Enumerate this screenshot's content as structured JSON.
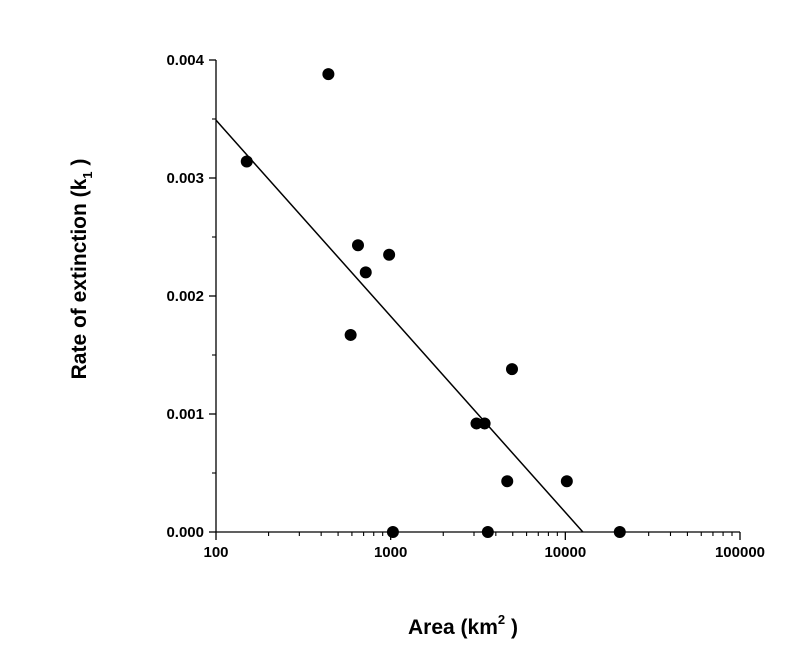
{
  "chart_data": {
    "type": "scatter",
    "x_scale": "log",
    "xlim": [
      100,
      100000
    ],
    "ylim": [
      0.0,
      0.004
    ],
    "x_ticks": [
      {
        "value": 100,
        "label": "100"
      },
      {
        "value": 1000,
        "label": "1000"
      },
      {
        "value": 10000,
        "label": "10000"
      },
      {
        "value": 100000,
        "label": "100000"
      }
    ],
    "y_ticks": [
      {
        "value": 0.0,
        "label": "0.000"
      },
      {
        "value": 0.001,
        "label": "0.001"
      },
      {
        "value": 0.002,
        "label": "0.002"
      },
      {
        "value": 0.003,
        "label": "0.003"
      },
      {
        "value": 0.004,
        "label": "0.004"
      }
    ],
    "xlabel": {
      "main": "Area  (km",
      "sup": "2",
      "end": " )"
    },
    "ylabel": {
      "main": "Rate  of  extinction  (k",
      "sub": "1",
      "end": " )"
    },
    "grid": false,
    "series": [
      {
        "points": [
          {
            "x": 150,
            "y": 0.00314
          },
          {
            "x": 440,
            "y": 0.00388
          },
          {
            "x": 590,
            "y": 0.00167
          },
          {
            "x": 650,
            "y": 0.00243
          },
          {
            "x": 720,
            "y": 0.0022
          },
          {
            "x": 980,
            "y": 0.00235
          },
          {
            "x": 1030,
            "y": 0.0
          },
          {
            "x": 3100,
            "y": 0.00092
          },
          {
            "x": 3450,
            "y": 0.00092
          },
          {
            "x": 3600,
            "y": 0.0
          },
          {
            "x": 4650,
            "y": 0.00043
          },
          {
            "x": 4950,
            "y": 0.00138
          },
          {
            "x": 10200,
            "y": 0.00043
          },
          {
            "x": 20500,
            "y": 0.0
          }
        ]
      }
    ],
    "fit_line": {
      "x": [
        100,
        12600
      ],
      "y": [
        0.00349,
        0.0
      ]
    }
  }
}
